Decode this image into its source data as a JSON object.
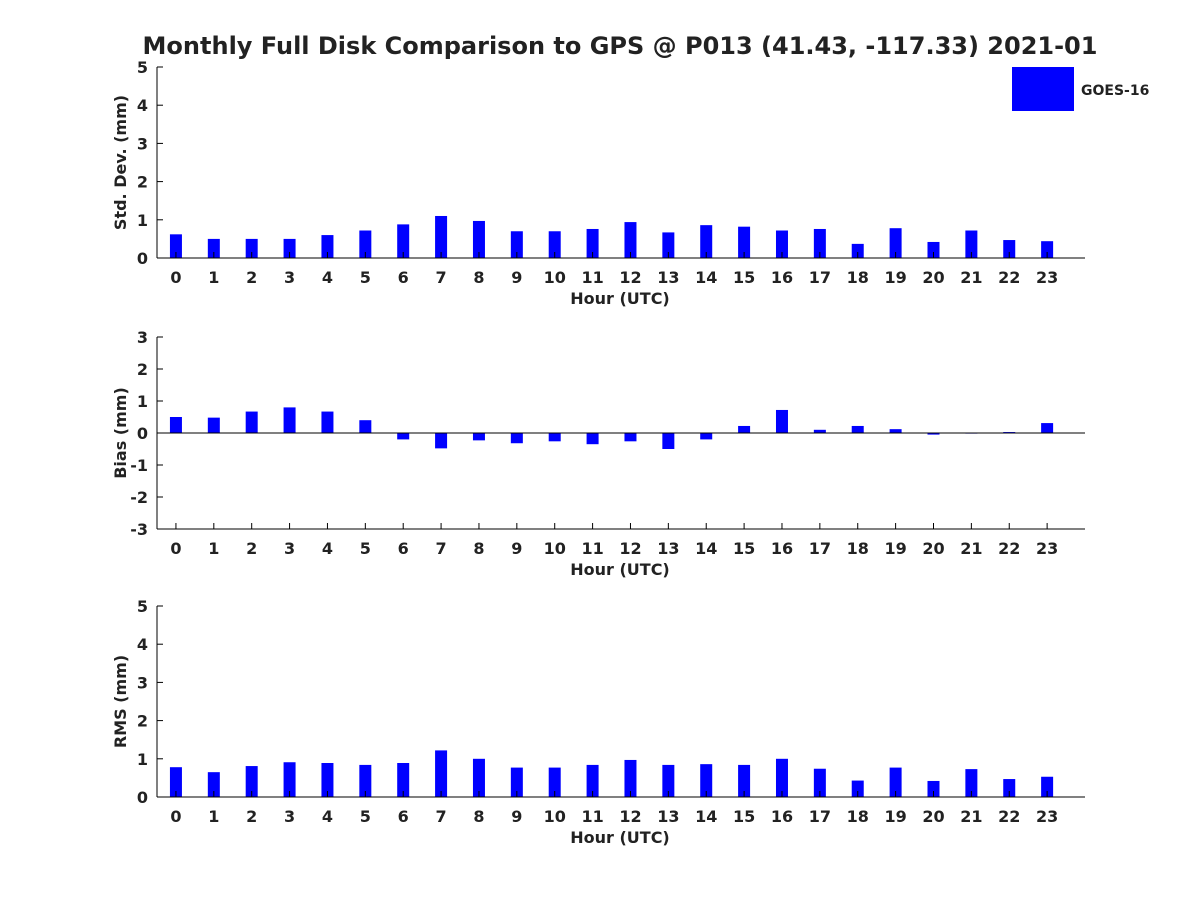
{
  "title": "Monthly Full Disk Comparison to GPS @ P013 (41.43, -117.33) 2021-01",
  "legend": {
    "label": "GOES-16",
    "color": "#0000ff",
    "position": "top-right"
  },
  "chart_data": [
    {
      "type": "bar",
      "categories": [
        "0",
        "1",
        "2",
        "3",
        "4",
        "5",
        "6",
        "7",
        "8",
        "9",
        "10",
        "11",
        "12",
        "13",
        "14",
        "15",
        "16",
        "17",
        "18",
        "19",
        "20",
        "21",
        "22",
        "23"
      ],
      "series": [
        {
          "name": "GOES-16",
          "color": "#0000ff",
          "values": [
            0.62,
            0.5,
            0.5,
            0.5,
            0.6,
            0.72,
            0.88,
            1.1,
            0.97,
            0.7,
            0.7,
            0.76,
            0.94,
            0.67,
            0.86,
            0.82,
            0.72,
            0.76,
            0.37,
            0.78,
            0.42,
            0.72,
            0.47,
            0.44
          ]
        }
      ],
      "xlabel": "Hour (UTC)",
      "ylabel": "Std. Dev. (mm)",
      "ylim": [
        0,
        5
      ],
      "yticks": [
        0,
        1,
        2,
        3,
        4,
        5
      ],
      "grid": false
    },
    {
      "type": "bar",
      "categories": [
        "0",
        "1",
        "2",
        "3",
        "4",
        "5",
        "6",
        "7",
        "8",
        "9",
        "10",
        "11",
        "12",
        "13",
        "14",
        "15",
        "16",
        "17",
        "18",
        "19",
        "20",
        "21",
        "22",
        "23"
      ],
      "series": [
        {
          "name": "GOES-16",
          "color": "#0000ff",
          "values": [
            0.5,
            0.48,
            0.67,
            0.8,
            0.67,
            0.4,
            -0.2,
            -0.48,
            -0.23,
            -0.32,
            -0.26,
            -0.35,
            -0.26,
            -0.5,
            -0.2,
            0.22,
            0.72,
            0.1,
            0.22,
            0.12,
            -0.05,
            0.0,
            0.03,
            0.31
          ]
        }
      ],
      "xlabel": "Hour (UTC)",
      "ylabel": "Bias (mm)",
      "ylim": [
        -3,
        3
      ],
      "yticks": [
        -3,
        -2,
        -1,
        0,
        1,
        2,
        3
      ],
      "grid": false
    },
    {
      "type": "bar",
      "categories": [
        "0",
        "1",
        "2",
        "3",
        "4",
        "5",
        "6",
        "7",
        "8",
        "9",
        "10",
        "11",
        "12",
        "13",
        "14",
        "15",
        "16",
        "17",
        "18",
        "19",
        "20",
        "21",
        "22",
        "23"
      ],
      "series": [
        {
          "name": "GOES-16",
          "color": "#0000ff",
          "values": [
            0.78,
            0.65,
            0.81,
            0.91,
            0.89,
            0.84,
            0.89,
            1.22,
            1.0,
            0.77,
            0.77,
            0.84,
            0.97,
            0.84,
            0.86,
            0.84,
            1.0,
            0.74,
            0.43,
            0.77,
            0.42,
            0.73,
            0.47,
            0.53
          ]
        }
      ],
      "xlabel": "Hour (UTC)",
      "ylabel": "RMS (mm)",
      "ylim": [
        0,
        5
      ],
      "yticks": [
        0,
        1,
        2,
        3,
        4,
        5
      ],
      "grid": false
    }
  ]
}
